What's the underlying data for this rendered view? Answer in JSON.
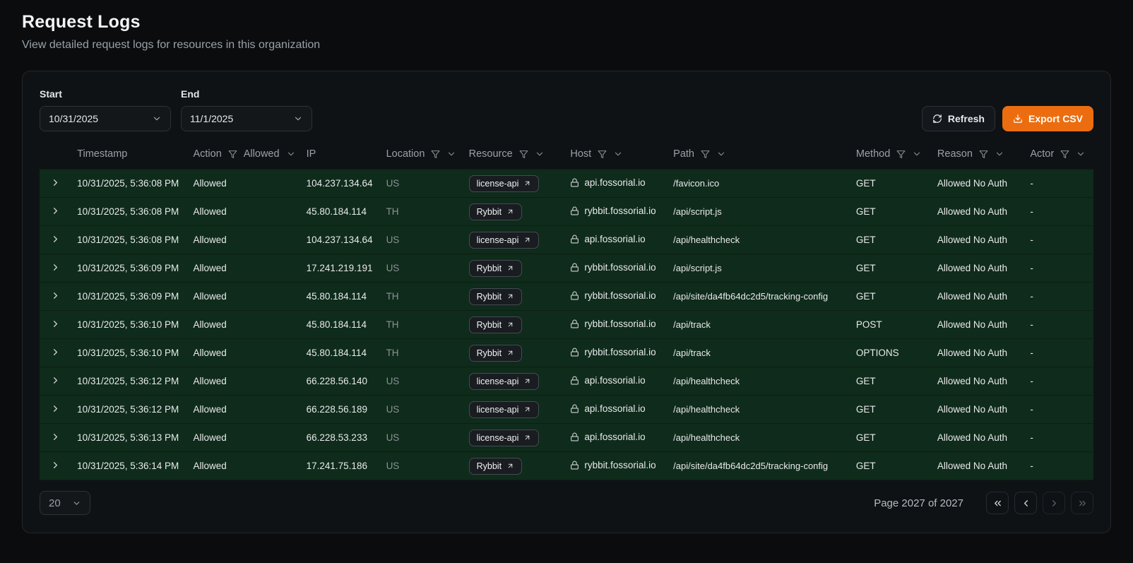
{
  "page": {
    "title": "Request Logs",
    "subtitle": "View detailed request logs for resources in this organization"
  },
  "filters": {
    "start_label": "Start",
    "start_value": "10/31/2025",
    "end_label": "End",
    "end_value": "11/1/2025",
    "refresh_label": "Refresh",
    "export_label": "Export CSV"
  },
  "table": {
    "columns": [
      {
        "label": "Timestamp"
      },
      {
        "label": "Action",
        "filter": true,
        "filter_value": "Allowed",
        "chevron": true
      },
      {
        "label": "IP"
      },
      {
        "label": "Location",
        "filter": true,
        "chevron": true
      },
      {
        "label": "Resource",
        "filter": true,
        "chevron": true
      },
      {
        "label": "Host",
        "filter": true,
        "chevron": true
      },
      {
        "label": "Path",
        "filter": true,
        "chevron": true
      },
      {
        "label": "Method",
        "filter": true,
        "chevron": true
      },
      {
        "label": "Reason",
        "filter": true,
        "chevron": true
      },
      {
        "label": "Actor",
        "filter": true,
        "chevron": true
      }
    ],
    "rows": [
      {
        "timestamp": "10/31/2025, 5:36:08 PM",
        "action": "Allowed",
        "ip": "104.237.134.64",
        "location": "US",
        "resource": "license-api",
        "host": "api.fossorial.io",
        "path": "/favicon.ico",
        "method": "GET",
        "reason": "Allowed No Auth",
        "actor": "-"
      },
      {
        "timestamp": "10/31/2025, 5:36:08 PM",
        "action": "Allowed",
        "ip": "45.80.184.114",
        "location": "TH",
        "resource": "Rybbit",
        "host": "rybbit.fossorial.io",
        "path": "/api/script.js",
        "method": "GET",
        "reason": "Allowed No Auth",
        "actor": "-"
      },
      {
        "timestamp": "10/31/2025, 5:36:08 PM",
        "action": "Allowed",
        "ip": "104.237.134.64",
        "location": "US",
        "resource": "license-api",
        "host": "api.fossorial.io",
        "path": "/api/healthcheck",
        "method": "GET",
        "reason": "Allowed No Auth",
        "actor": "-"
      },
      {
        "timestamp": "10/31/2025, 5:36:09 PM",
        "action": "Allowed",
        "ip": "17.241.219.191",
        "location": "US",
        "resource": "Rybbit",
        "host": "rybbit.fossorial.io",
        "path": "/api/script.js",
        "method": "GET",
        "reason": "Allowed No Auth",
        "actor": "-"
      },
      {
        "timestamp": "10/31/2025, 5:36:09 PM",
        "action": "Allowed",
        "ip": "45.80.184.114",
        "location": "TH",
        "resource": "Rybbit",
        "host": "rybbit.fossorial.io",
        "path": "/api/site/da4fb64dc2d5/tracking-config",
        "method": "GET",
        "reason": "Allowed No Auth",
        "actor": "-"
      },
      {
        "timestamp": "10/31/2025, 5:36:10 PM",
        "action": "Allowed",
        "ip": "45.80.184.114",
        "location": "TH",
        "resource": "Rybbit",
        "host": "rybbit.fossorial.io",
        "path": "/api/track",
        "method": "POST",
        "reason": "Allowed No Auth",
        "actor": "-"
      },
      {
        "timestamp": "10/31/2025, 5:36:10 PM",
        "action": "Allowed",
        "ip": "45.80.184.114",
        "location": "TH",
        "resource": "Rybbit",
        "host": "rybbit.fossorial.io",
        "path": "/api/track",
        "method": "OPTIONS",
        "reason": "Allowed No Auth",
        "actor": "-"
      },
      {
        "timestamp": "10/31/2025, 5:36:12 PM",
        "action": "Allowed",
        "ip": "66.228.56.140",
        "location": "US",
        "resource": "license-api",
        "host": "api.fossorial.io",
        "path": "/api/healthcheck",
        "method": "GET",
        "reason": "Allowed No Auth",
        "actor": "-"
      },
      {
        "timestamp": "10/31/2025, 5:36:12 PM",
        "action": "Allowed",
        "ip": "66.228.56.189",
        "location": "US",
        "resource": "license-api",
        "host": "api.fossorial.io",
        "path": "/api/healthcheck",
        "method": "GET",
        "reason": "Allowed No Auth",
        "actor": "-"
      },
      {
        "timestamp": "10/31/2025, 5:36:13 PM",
        "action": "Allowed",
        "ip": "66.228.53.233",
        "location": "US",
        "resource": "license-api",
        "host": "api.fossorial.io",
        "path": "/api/healthcheck",
        "method": "GET",
        "reason": "Allowed No Auth",
        "actor": "-"
      },
      {
        "timestamp": "10/31/2025, 5:36:14 PM",
        "action": "Allowed",
        "ip": "17.241.75.186",
        "location": "US",
        "resource": "Rybbit",
        "host": "rybbit.fossorial.io",
        "path": "/api/site/da4fb64dc2d5/tracking-config",
        "method": "GET",
        "reason": "Allowed No Auth",
        "actor": "-"
      }
    ]
  },
  "pagination": {
    "page_size": "20",
    "page_info": "Page 2027 of 2027"
  },
  "colors": {
    "accent": "#ec6d10",
    "row_green": "#0f2b1b"
  }
}
